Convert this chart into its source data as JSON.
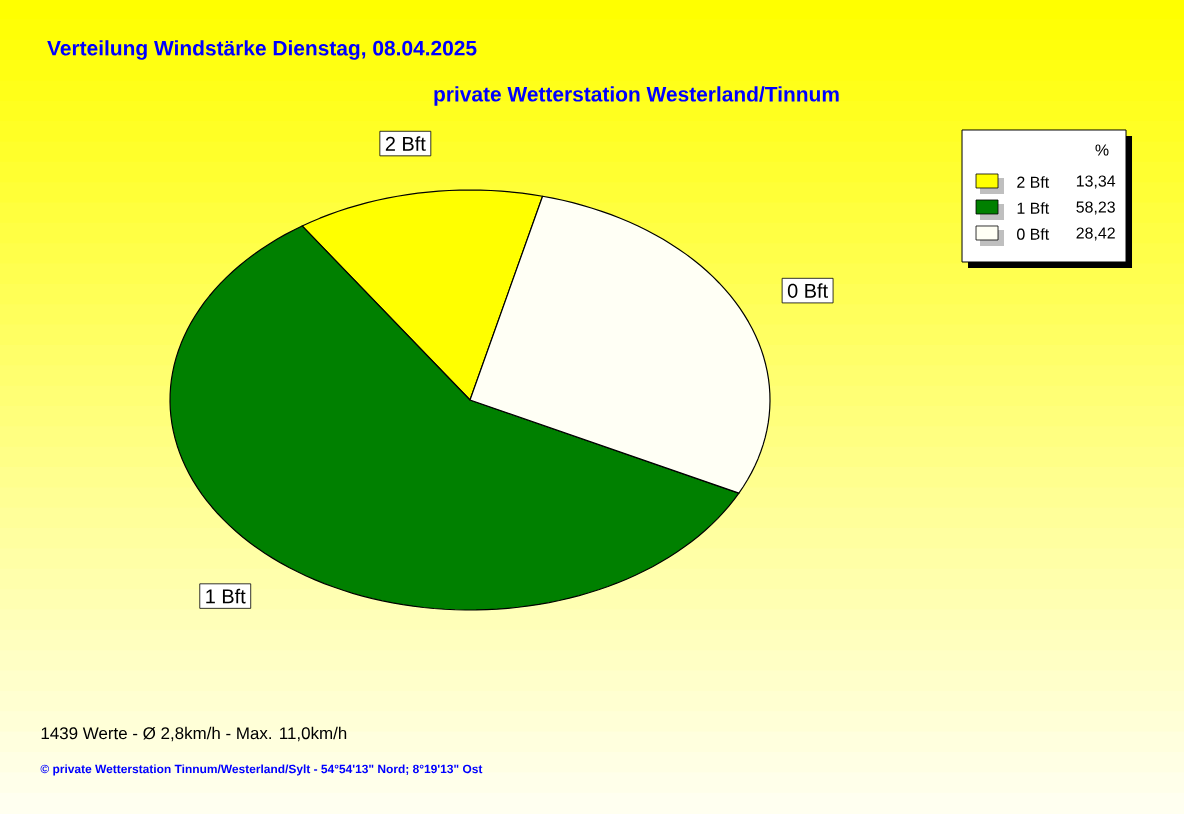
{
  "chart_data": {
    "type": "pie",
    "title": "Verteilung Windstärke  Dienstag, 08.04.2025",
    "subtitle": "private Wetterstation Westerland/Tinnum",
    "categories": [
      "2 Bft",
      "1 Bft",
      "0 Bft"
    ],
    "values": [
      13.34,
      58.23,
      28.42
    ],
    "value_labels": [
      "13,34",
      "58,23",
      "28,42"
    ],
    "colors": [
      "#ffff00",
      "#008000",
      "#fffff5"
    ],
    "legend": "top right",
    "legend_title": "%",
    "annotations": [
      "1439 Werte   -   Ø 2,8km/h  -  Max. 11,0km/h",
      "© private Wetterstation Tinnum/Westerland/Sylt   -   54°54'13\" Nord; 8°19'13\" Ost"
    ]
  }
}
